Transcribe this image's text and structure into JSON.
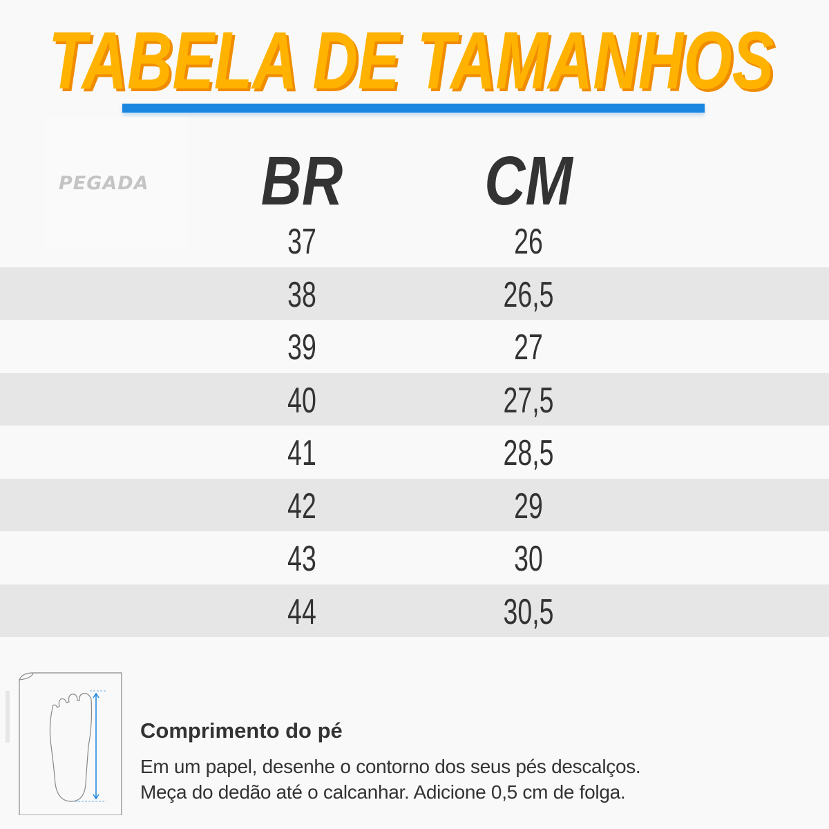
{
  "title": "TABELA DE TAMANHOS",
  "brand_logo": "PEGADA",
  "colors": {
    "title": "#ffb300",
    "title_shadow": "#f08c00",
    "underline": "#1a86e0",
    "text": "#333333",
    "stripe": "#e6e6e6"
  },
  "table": {
    "headers": [
      "BR",
      "CM"
    ],
    "rows": [
      [
        "37",
        "26"
      ],
      [
        "38",
        "26,5"
      ],
      [
        "39",
        "27"
      ],
      [
        "40",
        "27,5"
      ],
      [
        "41",
        "28,5"
      ],
      [
        "42",
        "29"
      ],
      [
        "43",
        "30"
      ],
      [
        "44",
        "30,5"
      ]
    ]
  },
  "instructions": {
    "icon": "foot-measure-icon",
    "title": "Comprimento do pé",
    "lines": [
      "Em um papel, desenhe o contorno dos seus pés descalços.",
      "Meça do dedão até o calcanhar. Adicione 0,5 cm de folga."
    ]
  }
}
